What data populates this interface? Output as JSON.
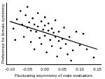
{
  "chart_data": {
    "type": "scatter",
    "x_label": "Fluctuating asymmetry of male evaluators",
    "y_label": "Preference for female symmetry",
    "xlim": [
      -0.11,
      0.16
    ],
    "xticks": [
      {
        "value": -0.1,
        "label": "-0.10"
      },
      {
        "value": -0.05,
        "label": "-0.05"
      },
      {
        "value": 0,
        "label": "0.00"
      },
      {
        "value": 0.05,
        "label": "0.05"
      },
      {
        "value": 0.1,
        "label": "0.10"
      },
      {
        "value": 0.15,
        "label": "0.15"
      }
    ],
    "ylim": [
      -3,
      3
    ],
    "tick_labels": "x",
    "grid": false,
    "series": [
      {
        "type": "scatter",
        "color": "#000000",
        "marker": "circle",
        "x": [
          -0.09,
          -0.08,
          -0.07,
          -0.065,
          -0.06,
          -0.055,
          -0.05,
          -0.05,
          -0.045,
          -0.04,
          -0.04,
          -0.035,
          -0.03,
          -0.03,
          -0.025,
          -0.02,
          -0.02,
          -0.015,
          -0.01,
          -0.01,
          -0.005,
          0.0,
          0.0,
          0.0,
          0.005,
          0.01,
          0.01,
          0.015,
          0.02,
          0.02,
          0.025,
          0.03,
          0.03,
          0.035,
          0.04,
          0.04,
          0.045,
          0.05,
          0.055,
          0.06,
          0.065,
          0.07,
          0.08,
          0.09,
          0.1,
          0.12,
          0.14,
          -0.085,
          0.075,
          0.11
        ],
        "values": [
          0.5,
          1.4,
          2.2,
          0.9,
          -0.3,
          1.8,
          0.6,
          2.6,
          1.1,
          -0.8,
          0.3,
          1.5,
          0.9,
          -1.5,
          0.2,
          2.0,
          0.7,
          -0.4,
          1.2,
          -1.0,
          0.4,
          1.6,
          -0.2,
          0.8,
          -1.8,
          0.3,
          1.0,
          -0.6,
          0.5,
          -1.2,
          0.1,
          -0.3,
          1.3,
          -2.2,
          -0.7,
          0.2,
          -1.4,
          -0.5,
          0.6,
          -1.0,
          -2.0,
          -0.3,
          -1.6,
          0.2,
          -1.1,
          -1.5,
          -2.3,
          -0.6,
          -2.6,
          0.0
        ]
      },
      {
        "type": "line",
        "color": "#000000",
        "line_style": "solid",
        "x": [
          -0.1,
          0.15
        ],
        "values": [
          1.2,
          -1.5
        ]
      }
    ]
  }
}
